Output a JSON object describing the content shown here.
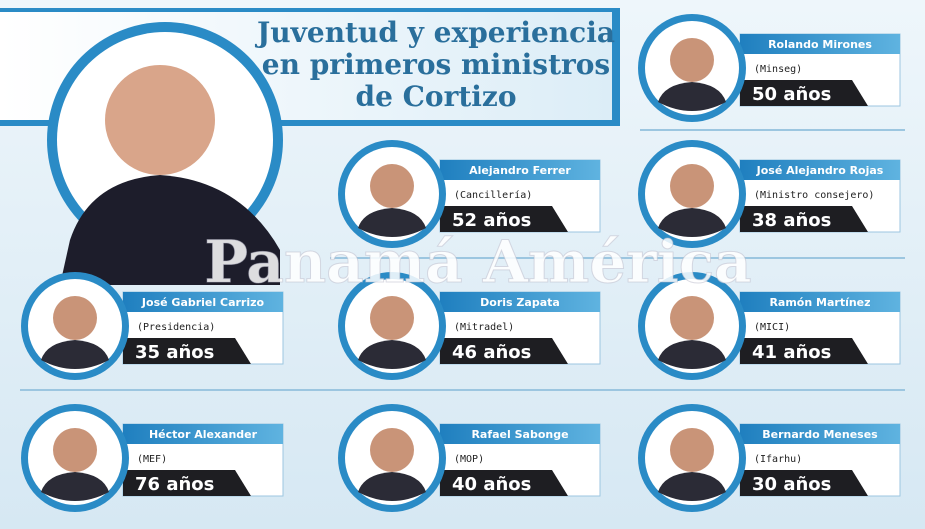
{
  "title": {
    "lines": [
      "Juventud y experiencia",
      "en primeros ministros",
      "de Cortizo"
    ]
  },
  "watermark": "Panamá América",
  "ministers": [
    {
      "name": "Rolando Mirones",
      "role": "(Minseg)",
      "age": "50 años"
    },
    {
      "name": "Alejandro Ferrer",
      "role": "(Cancillería)",
      "age": "52 años"
    },
    {
      "name": "José Alejandro Rojas",
      "role": "(Ministro consejero)",
      "age": "38 años"
    },
    {
      "name": "José Gabriel Carrizo",
      "role": "(Presidencia)",
      "age": "35 años"
    },
    {
      "name": "Doris Zapata",
      "role": "(Mitradel)",
      "age": "46 años"
    },
    {
      "name": "Ramón Martínez",
      "role": "(MICI)",
      "age": "41 años"
    },
    {
      "name": "Héctor Alexander",
      "role": "(MEF)",
      "age": "76 años"
    },
    {
      "name": "Rafael Sabonge",
      "role": "(MOP)",
      "age": "40 años"
    },
    {
      "name": "Bernardo Meneses",
      "role": "(Ifarhu)",
      "age": "30 años"
    }
  ]
}
